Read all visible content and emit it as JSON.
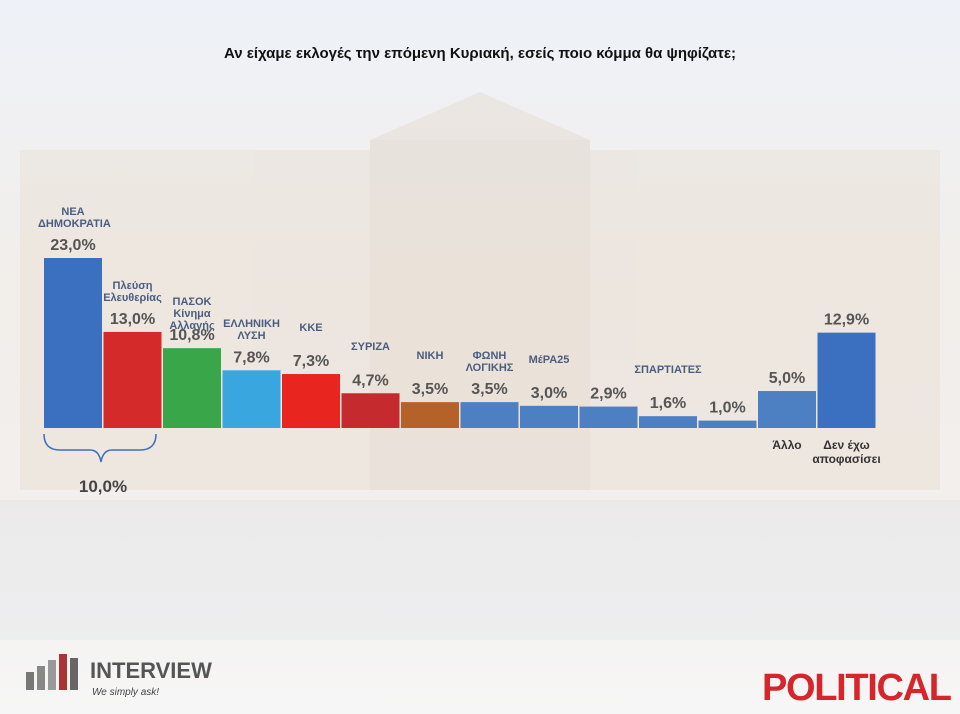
{
  "chart_data": {
    "type": "bar",
    "title": "Αν είχαμε εκλογές την επόμενη Κυριακή, εσείς ποιο κόμμα θα ψηφίζατε;",
    "categories": [
      "ΝΕΑ ΔΗΜΟΚΡΑΤΙΑ",
      "Πλεύση Ελευθερίας",
      "ΠΑΣΟΚ Κίνημα Αλλαγής",
      "ΕΛΛΗΝΙΚΗ ΛΥΣΗ",
      "ΚΚΕ",
      "ΣΥΡΙΖΑ",
      "ΝΙΚΗ",
      "ΦΩΝΗ ΛΟΓΙΚΗΣ",
      "ΜέΡΑ25",
      null,
      "ΣΠΑΡΤΙΑΤΕΣ",
      null,
      "Άλλο",
      "Δεν έχω αποφασίσει"
    ],
    "values": [
      23.0,
      13.0,
      10.8,
      7.8,
      7.3,
      4.7,
      3.5,
      3.5,
      3.0,
      2.9,
      1.6,
      1.0,
      5.0,
      12.9
    ],
    "value_labels": [
      "23,0%",
      "13,0%",
      "10,8%",
      "7,8%",
      "7,3%",
      "4,7%",
      "3,5%",
      "3,5%",
      "3,0%",
      "2,9%",
      "1,6%",
      "1,0%",
      "5,0%",
      "12,9%"
    ],
    "colors": [
      "#3b6fbf",
      "#d42a2a",
      "#3aa64a",
      "#39a6e0",
      "#e8251f",
      "#c52a2e",
      "#b5612a",
      "#4d7fc3",
      "#4d7fc3",
      "#4d7fc3",
      "#4d7fc3",
      "#4d7fc3",
      "#4d7fc3",
      "#3b6fbf"
    ],
    "annotation": "10,0%"
  },
  "footer": {
    "brand": "INTERVIEW",
    "slogan": "We simply ask!",
    "media": "POLITICAL"
  }
}
